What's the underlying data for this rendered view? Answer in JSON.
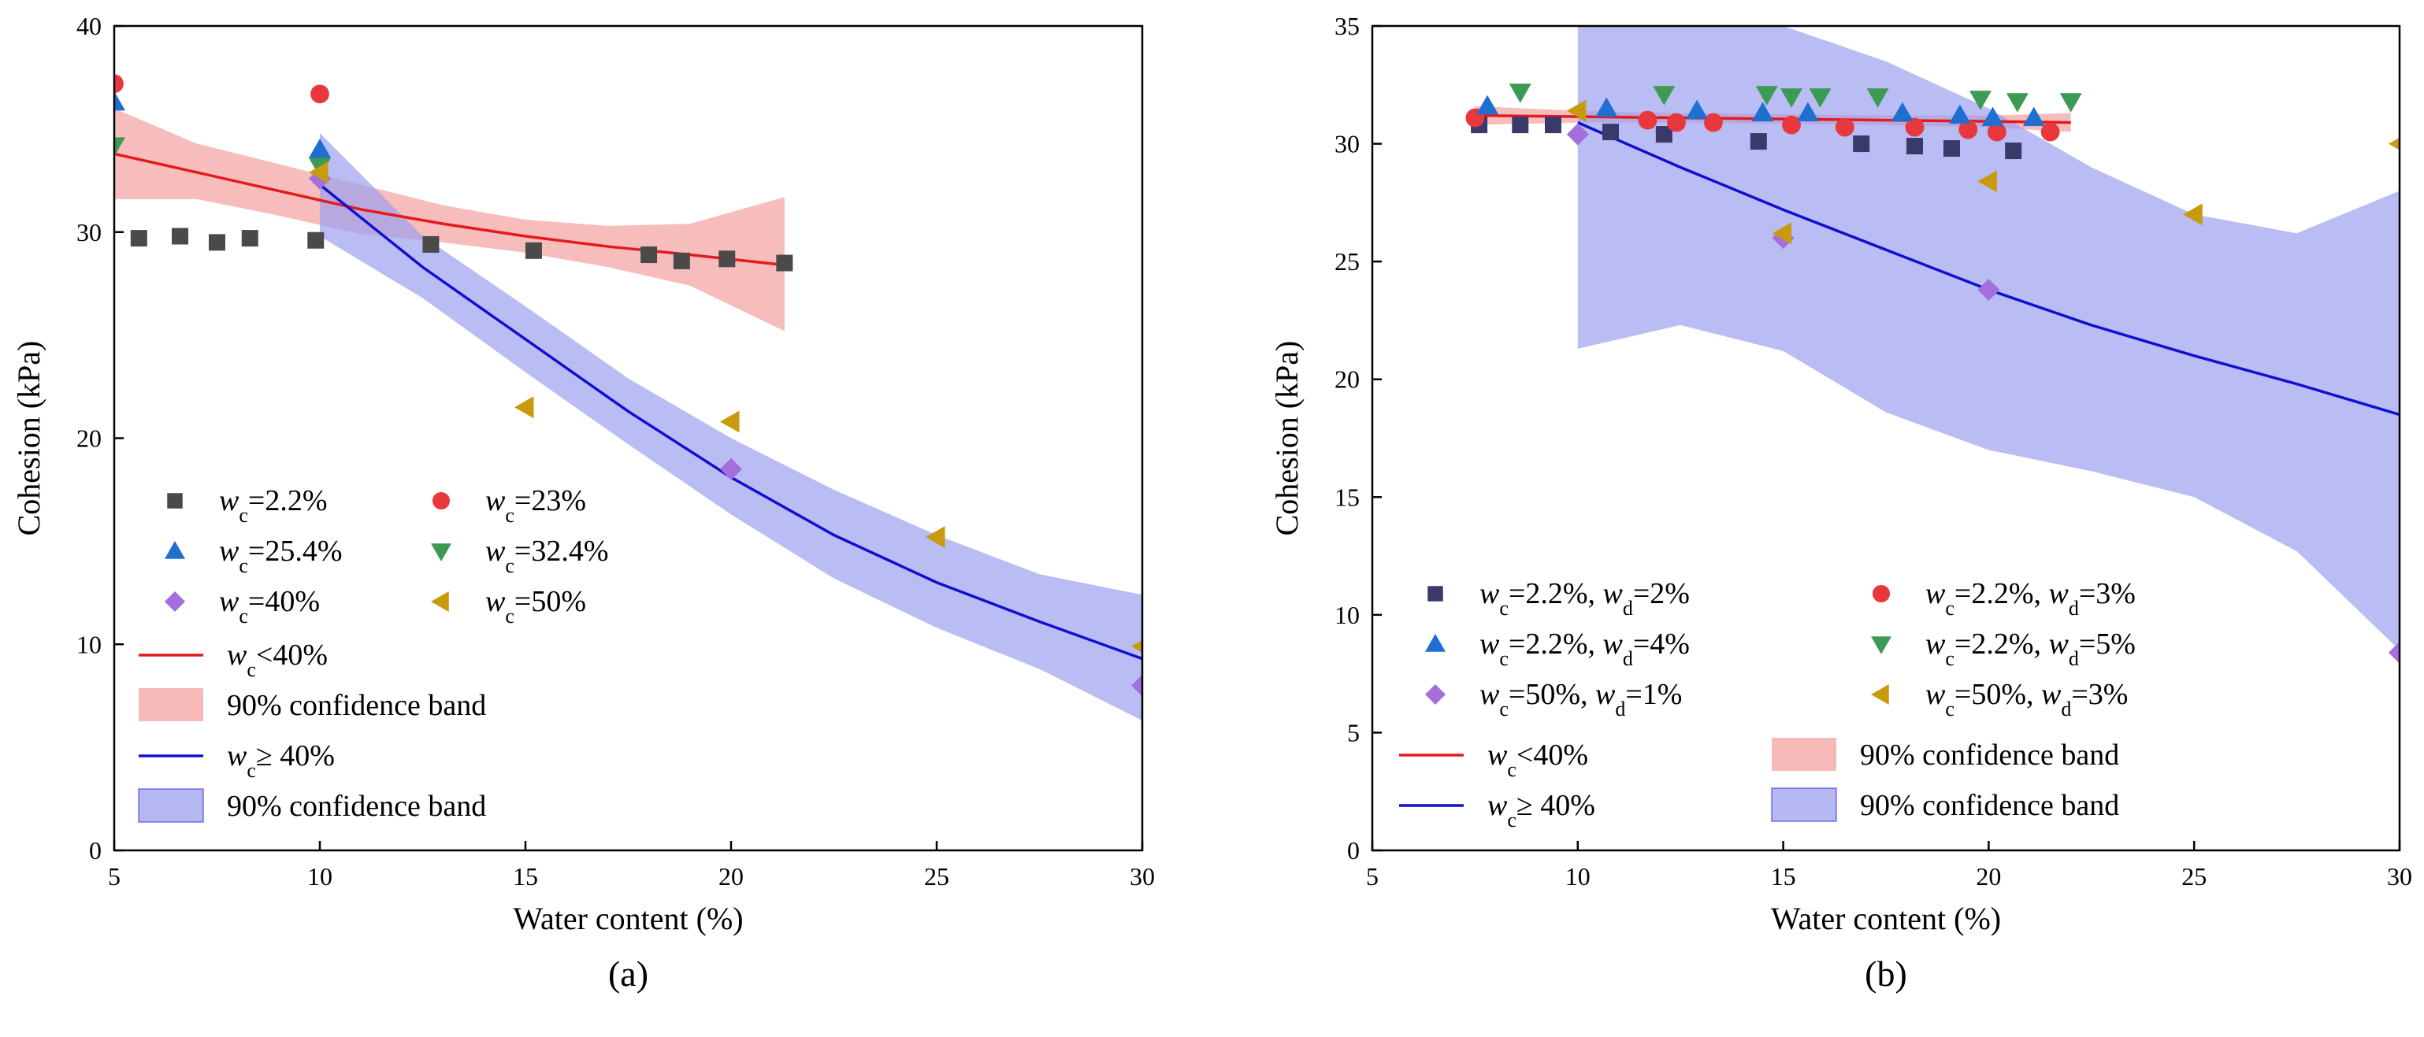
{
  "chart_data": [
    {
      "type": "scatter",
      "caption": "(a)",
      "xlabel": "Water content (%)",
      "ylabel": "Cohesion (kPa)",
      "xlim": [
        5,
        30
      ],
      "ylim": [
        0,
        40
      ],
      "xticks": [
        5,
        10,
        15,
        20,
        25,
        30
      ],
      "yticks": [
        0,
        10,
        20,
        30,
        40
      ],
      "series": [
        {
          "name": "wc=2.2%",
          "marker": "square",
          "color": "#4a4a4a",
          "label": {
            "var": "w",
            "sub": "c",
            "rest": "=2.2%"
          },
          "points": [
            [
              5.6,
              29.7
            ],
            [
              6.6,
              29.8
            ],
            [
              7.5,
              29.5
            ],
            [
              8.3,
              29.7
            ],
            [
              9.9,
              29.6
            ],
            [
              12.7,
              29.4
            ],
            [
              15.2,
              29.1
            ],
            [
              18.0,
              28.9
            ],
            [
              18.8,
              28.6
            ],
            [
              19.9,
              28.7
            ],
            [
              21.3,
              28.5
            ]
          ]
        },
        {
          "name": "wc=23%",
          "marker": "circle",
          "color": "#e8383d",
          "label": {
            "var": "w",
            "sub": "c",
            "rest": "=23%"
          },
          "points": [
            [
              5.0,
              37.2
            ],
            [
              10.0,
              36.7
            ]
          ]
        },
        {
          "name": "wc=25.4%",
          "marker": "triangle-up",
          "color": "#1f6fd1",
          "label": {
            "var": "w",
            "sub": "c",
            "rest": "=25.4%"
          },
          "points": [
            [
              5.0,
              36.3
            ],
            [
              10.0,
              34.0
            ]
          ]
        },
        {
          "name": "wc=32.4%",
          "marker": "triangle-down",
          "color": "#3c9a55",
          "label": {
            "var": "w",
            "sub": "c",
            "rest": "=32.4%"
          },
          "points": [
            [
              5.0,
              34.2
            ],
            [
              10.0,
              33.2
            ]
          ]
        },
        {
          "name": "wc=40%",
          "marker": "diamond",
          "color": "#a46fdc",
          "label": {
            "var": "w",
            "sub": "c",
            "rest": "=40%"
          },
          "points": [
            [
              10.0,
              32.6
            ],
            [
              20.0,
              18.5
            ],
            [
              30.0,
              8.0
            ]
          ]
        },
        {
          "name": "wc=50%",
          "marker": "triangle-left",
          "color": "#c99a0e",
          "label": {
            "var": "w",
            "sub": "c",
            "rest": "=50%"
          },
          "points": [
            [
              10.0,
              32.9
            ],
            [
              15.0,
              21.5
            ],
            [
              20.0,
              20.8
            ],
            [
              25.0,
              15.2
            ],
            [
              30.0,
              9.9
            ]
          ]
        }
      ],
      "fits": [
        {
          "name": "wc<40%",
          "color": "#e41a1c",
          "label": {
            "var": "w",
            "sub": "c",
            "rest": "<40%"
          },
          "curve": [
            [
              5,
              33.8
            ],
            [
              7,
              32.9
            ],
            [
              9,
              32.0
            ],
            [
              11,
              31.1
            ],
            [
              13,
              30.4
            ],
            [
              15,
              29.8
            ],
            [
              17,
              29.3
            ],
            [
              19,
              28.9
            ],
            [
              21.3,
              28.4
            ]
          ],
          "band_upper": [
            [
              5,
              36.0
            ],
            [
              7,
              34.3
            ],
            [
              9,
              33.3
            ],
            [
              11,
              32.3
            ],
            [
              13,
              31.3
            ],
            [
              15,
              30.6
            ],
            [
              17,
              30.3
            ],
            [
              19,
              30.4
            ],
            [
              21.3,
              31.7
            ]
          ],
          "band_lower": [
            [
              5,
              31.6
            ],
            [
              7,
              31.6
            ],
            [
              9,
              30.8
            ],
            [
              11,
              29.9
            ],
            [
              13,
              29.5
            ],
            [
              15,
              29.0
            ],
            [
              17,
              28.3
            ],
            [
              19,
              27.4
            ],
            [
              21.3,
              25.2
            ]
          ],
          "band_color": "#f4a0a0"
        },
        {
          "name": "wc>=40%",
          "color": "#1010d0",
          "label": {
            "var": "w",
            "sub": "c",
            "rest": "≥ 40%"
          },
          "curve": [
            [
              10,
              32.3
            ],
            [
              12.5,
              28.3
            ],
            [
              15,
              24.8
            ],
            [
              17.5,
              21.3
            ],
            [
              20,
              18.1
            ],
            [
              22.5,
              15.3
            ],
            [
              25,
              13.0
            ],
            [
              27.5,
              11.1
            ],
            [
              30,
              9.3
            ]
          ],
          "band_upper": [
            [
              10,
              34.8
            ],
            [
              12.5,
              29.8
            ],
            [
              15,
              26.4
            ],
            [
              17.5,
              22.9
            ],
            [
              20,
              20.0
            ],
            [
              22.5,
              17.5
            ],
            [
              25,
              15.3
            ],
            [
              27.5,
              13.4
            ],
            [
              30,
              12.4
            ]
          ],
          "band_lower": [
            [
              10,
              29.8
            ],
            [
              12.5,
              26.8
            ],
            [
              15,
              23.2
            ],
            [
              17.5,
              19.7
            ],
            [
              20,
              16.3
            ],
            [
              22.5,
              13.2
            ],
            [
              25,
              10.8
            ],
            [
              27.5,
              8.8
            ],
            [
              30,
              6.3
            ]
          ],
          "band_color": "#9da0f0"
        }
      ],
      "legend_fit_labels": [
        "90% confidence band",
        "90% confidence band"
      ]
    },
    {
      "type": "scatter",
      "caption": "(b)",
      "xlabel": "Water content (%)",
      "ylabel": "Cohesion (kPa)",
      "xlim": [
        5,
        30
      ],
      "ylim": [
        0,
        35
      ],
      "xticks": [
        5,
        10,
        15,
        20,
        25,
        30
      ],
      "yticks": [
        0,
        5,
        10,
        15,
        20,
        25,
        30,
        35
      ],
      "series": [
        {
          "name": "wc=2.2%, wd=2%",
          "marker": "square",
          "color": "#3a3a6a",
          "label": {
            "var": "w",
            "sub": "c",
            "rest": "=2.2%, ",
            "var2": "w",
            "sub2": "d",
            "rest2": "=2%"
          },
          "points": [
            [
              7.6,
              30.8
            ],
            [
              8.6,
              30.8
            ],
            [
              9.4,
              30.8
            ],
            [
              10.8,
              30.5
            ],
            [
              12.1,
              30.4
            ],
            [
              14.4,
              30.1
            ],
            [
              16.9,
              30.0
            ],
            [
              18.2,
              29.9
            ],
            [
              19.1,
              29.8
            ],
            [
              20.6,
              29.7
            ]
          ]
        },
        {
          "name": "wc=2.2%, wd=3%",
          "marker": "circle",
          "color": "#e8383d",
          "label": {
            "var": "w",
            "sub": "c",
            "rest": "=2.2%, ",
            "var2": "w",
            "sub2": "d",
            "rest2": "=3%"
          },
          "points": [
            [
              7.5,
              31.1
            ],
            [
              11.7,
              31.0
            ],
            [
              12.4,
              30.9
            ],
            [
              13.3,
              30.9
            ],
            [
              15.2,
              30.8
            ],
            [
              16.5,
              30.7
            ],
            [
              18.2,
              30.7
            ],
            [
              19.5,
              30.6
            ],
            [
              20.2,
              30.5
            ],
            [
              21.5,
              30.5
            ]
          ]
        },
        {
          "name": "wc=2.2%, wd=4%",
          "marker": "triangle-up",
          "color": "#1f6fd1",
          "label": {
            "var": "w",
            "sub": "c",
            "rest": "=2.2%, ",
            "var2": "w",
            "sub2": "d",
            "rest2": "=4%"
          },
          "points": [
            [
              7.8,
              31.6
            ],
            [
              10.7,
              31.5
            ],
            [
              12.9,
              31.4
            ],
            [
              14.5,
              31.3
            ],
            [
              15.6,
              31.3
            ],
            [
              17.9,
              31.3
            ],
            [
              19.3,
              31.2
            ],
            [
              20.1,
              31.1
            ],
            [
              21.1,
              31.1
            ]
          ]
        },
        {
          "name": "wc=2.2%, wd=5%",
          "marker": "triangle-down",
          "color": "#3c9a55",
          "label": {
            "var": "w",
            "sub": "c",
            "rest": "=2.2%, ",
            "var2": "w",
            "sub2": "d",
            "rest2": "=5%"
          },
          "points": [
            [
              8.6,
              32.2
            ],
            [
              12.1,
              32.1
            ],
            [
              14.6,
              32.1
            ],
            [
              15.2,
              32.0
            ],
            [
              15.9,
              32.0
            ],
            [
              17.3,
              32.0
            ],
            [
              19.8,
              31.9
            ],
            [
              20.7,
              31.8
            ],
            [
              22.0,
              31.8
            ]
          ]
        },
        {
          "name": "wc=50%, wd=1%",
          "marker": "diamond",
          "color": "#a46fdc",
          "label": {
            "var": "w",
            "sub": "c",
            "rest": "=50%, ",
            "var2": "w",
            "sub2": "d",
            "rest2": "=1%"
          },
          "points": [
            [
              10.0,
              30.4
            ],
            [
              15.0,
              26.0
            ],
            [
              20.0,
              23.8
            ],
            [
              30.0,
              8.4
            ]
          ]
        },
        {
          "name": "wc=50%, wd=3%",
          "marker": "triangle-left",
          "color": "#c99a0e",
          "label": {
            "var": "w",
            "sub": "c",
            "rest": "=50%, ",
            "var2": "w",
            "sub2": "d",
            "rest2": "=3%"
          },
          "points": [
            [
              10.0,
              31.4
            ],
            [
              15.0,
              26.2
            ],
            [
              20.0,
              28.4
            ],
            [
              25.0,
              27.0
            ],
            [
              30.0,
              30.0
            ]
          ]
        }
      ],
      "fits": [
        {
          "name": "wc<40%",
          "color": "#e41a1c",
          "label": {
            "var": "w",
            "sub": "c",
            "rest": "<40%"
          },
          "curve": [
            [
              7.5,
              31.2
            ],
            [
              10,
              31.15
            ],
            [
              12.5,
              31.1
            ],
            [
              15,
              31.05
            ],
            [
              17.5,
              31.0
            ],
            [
              20,
              30.95
            ],
            [
              22,
              30.9
            ]
          ],
          "band_upper": [
            [
              7.5,
              31.6
            ],
            [
              10,
              31.4
            ],
            [
              12.5,
              31.3
            ],
            [
              15,
              31.25
            ],
            [
              17.5,
              31.2
            ],
            [
              20,
              31.2
            ],
            [
              22,
              31.3
            ]
          ],
          "band_lower": [
            [
              7.5,
              30.8
            ],
            [
              10,
              30.9
            ],
            [
              12.5,
              30.9
            ],
            [
              15,
              30.85
            ],
            [
              17.5,
              30.8
            ],
            [
              20,
              30.7
            ],
            [
              22,
              30.5
            ]
          ],
          "band_color": "#f4a0a0"
        },
        {
          "name": "wc>=40%",
          "color": "#1010d0",
          "label": {
            "var": "w",
            "sub": "c",
            "rest": "≥ 40%"
          },
          "curve": [
            [
              10,
              30.9
            ],
            [
              12.5,
              29.0
            ],
            [
              15,
              27.2
            ],
            [
              17.5,
              25.5
            ],
            [
              20,
              23.8
            ],
            [
              22.5,
              22.3
            ],
            [
              25,
              21.0
            ],
            [
              27.5,
              19.8
            ],
            [
              30,
              18.5
            ]
          ],
          "band_upper": [
            [
              10,
              35.0
            ],
            [
              12.5,
              35.0
            ],
            [
              15,
              35.0
            ],
            [
              17.5,
              33.5
            ],
            [
              20,
              31.5
            ],
            [
              22.5,
              29.0
            ],
            [
              25,
              27.0
            ],
            [
              27.5,
              26.2
            ],
            [
              30,
              28.0
            ]
          ],
          "band_lower": [
            [
              10,
              21.3
            ],
            [
              12.5,
              22.3
            ],
            [
              15,
              21.2
            ],
            [
              17.5,
              18.6
            ],
            [
              20,
              17.0
            ],
            [
              22.5,
              16.1
            ],
            [
              25,
              15.0
            ],
            [
              27.5,
              12.7
            ],
            [
              30,
              8.5
            ]
          ],
          "band_color": "#9da0f0"
        }
      ],
      "legend_fit_labels": [
        "90% confidence band",
        "90% confidence band"
      ]
    }
  ]
}
